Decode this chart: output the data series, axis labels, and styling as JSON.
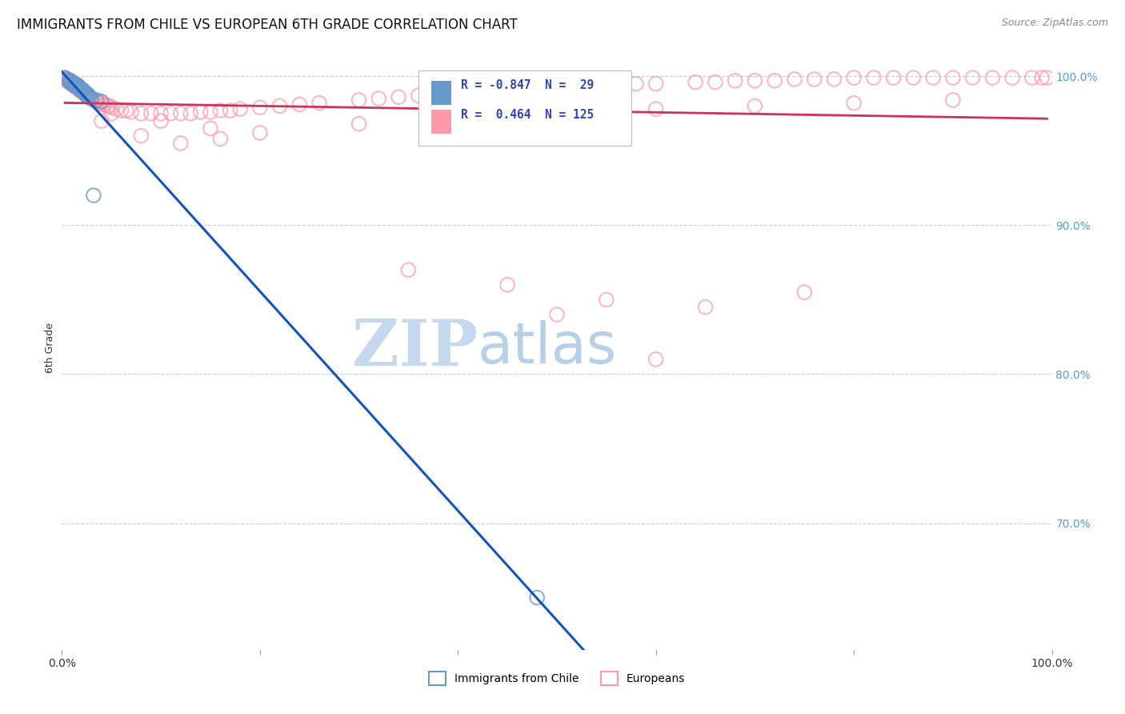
{
  "title": "IMMIGRANTS FROM CHILE VS EUROPEAN 6TH GRADE CORRELATION CHART",
  "source": "Source: ZipAtlas.com",
  "ylabel": "6th Grade",
  "right_yticks": [
    0.7,
    0.8,
    0.9,
    1.0
  ],
  "right_yticklabels": [
    "70.0%",
    "80.0%",
    "90.0%",
    "100.0%"
  ],
  "xlim": [
    0.0,
    1.0
  ],
  "ylim": [
    0.615,
    1.02
  ],
  "chile_R": -0.847,
  "chile_N": 29,
  "euro_R": 0.464,
  "euro_N": 125,
  "chile_color": "#6699cc",
  "euro_color": "#ff99aa",
  "chile_line_color": "#1155bb",
  "euro_line_color": "#cc3355",
  "watermark_zip": "ZIP",
  "watermark_atlas": "atlas",
  "watermark_zip_color": "#c5d8ee",
  "watermark_atlas_color": "#b8cfe8",
  "background_color": "#ffffff",
  "grid_color": "#cccccc",
  "right_axis_color": "#5599dd",
  "title_fontsize": 12,
  "source_fontsize": 9,
  "chile_scatter_x": [
    0.003,
    0.005,
    0.007,
    0.008,
    0.009,
    0.01,
    0.011,
    0.012,
    0.013,
    0.014,
    0.015,
    0.016,
    0.017,
    0.018,
    0.019,
    0.02,
    0.021,
    0.022,
    0.023,
    0.024,
    0.025,
    0.026,
    0.027,
    0.028,
    0.03,
    0.032,
    0.035,
    0.04,
    0.48
  ],
  "chile_scatter_y": [
    0.999,
    0.998,
    0.997,
    0.996,
    0.997,
    0.996,
    0.995,
    0.994,
    0.995,
    0.994,
    0.993,
    0.994,
    0.993,
    0.992,
    0.991,
    0.99,
    0.991,
    0.99,
    0.989,
    0.988,
    0.987,
    0.988,
    0.987,
    0.986,
    0.985,
    0.92,
    0.984,
    0.983,
    0.65
  ],
  "euro_scatter_x": [
    0.003,
    0.004,
    0.005,
    0.005,
    0.006,
    0.006,
    0.007,
    0.007,
    0.008,
    0.008,
    0.009,
    0.009,
    0.01,
    0.01,
    0.011,
    0.011,
    0.012,
    0.012,
    0.013,
    0.013,
    0.014,
    0.014,
    0.015,
    0.015,
    0.016,
    0.017,
    0.018,
    0.019,
    0.02,
    0.021,
    0.022,
    0.023,
    0.024,
    0.025,
    0.026,
    0.027,
    0.028,
    0.029,
    0.03,
    0.032,
    0.033,
    0.035,
    0.037,
    0.038,
    0.04,
    0.042,
    0.044,
    0.046,
    0.048,
    0.05,
    0.055,
    0.06,
    0.065,
    0.07,
    0.08,
    0.09,
    0.1,
    0.11,
    0.12,
    0.13,
    0.14,
    0.15,
    0.16,
    0.17,
    0.18,
    0.2,
    0.22,
    0.24,
    0.26,
    0.3,
    0.32,
    0.34,
    0.36,
    0.38,
    0.4,
    0.44,
    0.46,
    0.48,
    0.5,
    0.52,
    0.54,
    0.58,
    0.6,
    0.64,
    0.66,
    0.68,
    0.7,
    0.72,
    0.74,
    0.76,
    0.78,
    0.8,
    0.82,
    0.84,
    0.86,
    0.88,
    0.9,
    0.92,
    0.94,
    0.96,
    0.98,
    0.99,
    0.995,
    0.04,
    0.08,
    0.12,
    0.16,
    0.2,
    0.3,
    0.4,
    0.5,
    0.6,
    0.7,
    0.8,
    0.9,
    0.5,
    0.6,
    0.35,
    0.45,
    0.55,
    0.65,
    0.75,
    0.05,
    0.1,
    0.15
  ],
  "euro_scatter_y": [
    0.999,
    0.998,
    0.998,
    0.997,
    0.997,
    0.998,
    0.996,
    0.997,
    0.996,
    0.997,
    0.995,
    0.996,
    0.995,
    0.996,
    0.994,
    0.995,
    0.994,
    0.995,
    0.993,
    0.994,
    0.993,
    0.994,
    0.992,
    0.993,
    0.992,
    0.991,
    0.991,
    0.99,
    0.99,
    0.989,
    0.989,
    0.988,
    0.988,
    0.987,
    0.987,
    0.986,
    0.986,
    0.985,
    0.985,
    0.984,
    0.984,
    0.983,
    0.983,
    0.982,
    0.982,
    0.981,
    0.981,
    0.98,
    0.98,
    0.979,
    0.978,
    0.977,
    0.977,
    0.976,
    0.975,
    0.975,
    0.975,
    0.975,
    0.975,
    0.975,
    0.976,
    0.976,
    0.977,
    0.977,
    0.978,
    0.979,
    0.98,
    0.981,
    0.982,
    0.984,
    0.985,
    0.986,
    0.987,
    0.988,
    0.989,
    0.991,
    0.992,
    0.993,
    0.993,
    0.994,
    0.994,
    0.995,
    0.995,
    0.996,
    0.996,
    0.997,
    0.997,
    0.997,
    0.998,
    0.998,
    0.998,
    0.999,
    0.999,
    0.999,
    0.999,
    0.999,
    0.999,
    0.999,
    0.999,
    0.999,
    0.999,
    0.999,
    0.999,
    0.97,
    0.96,
    0.955,
    0.958,
    0.962,
    0.968,
    0.972,
    0.975,
    0.978,
    0.98,
    0.982,
    0.984,
    0.84,
    0.81,
    0.87,
    0.86,
    0.85,
    0.845,
    0.855,
    0.975,
    0.97,
    0.965
  ]
}
